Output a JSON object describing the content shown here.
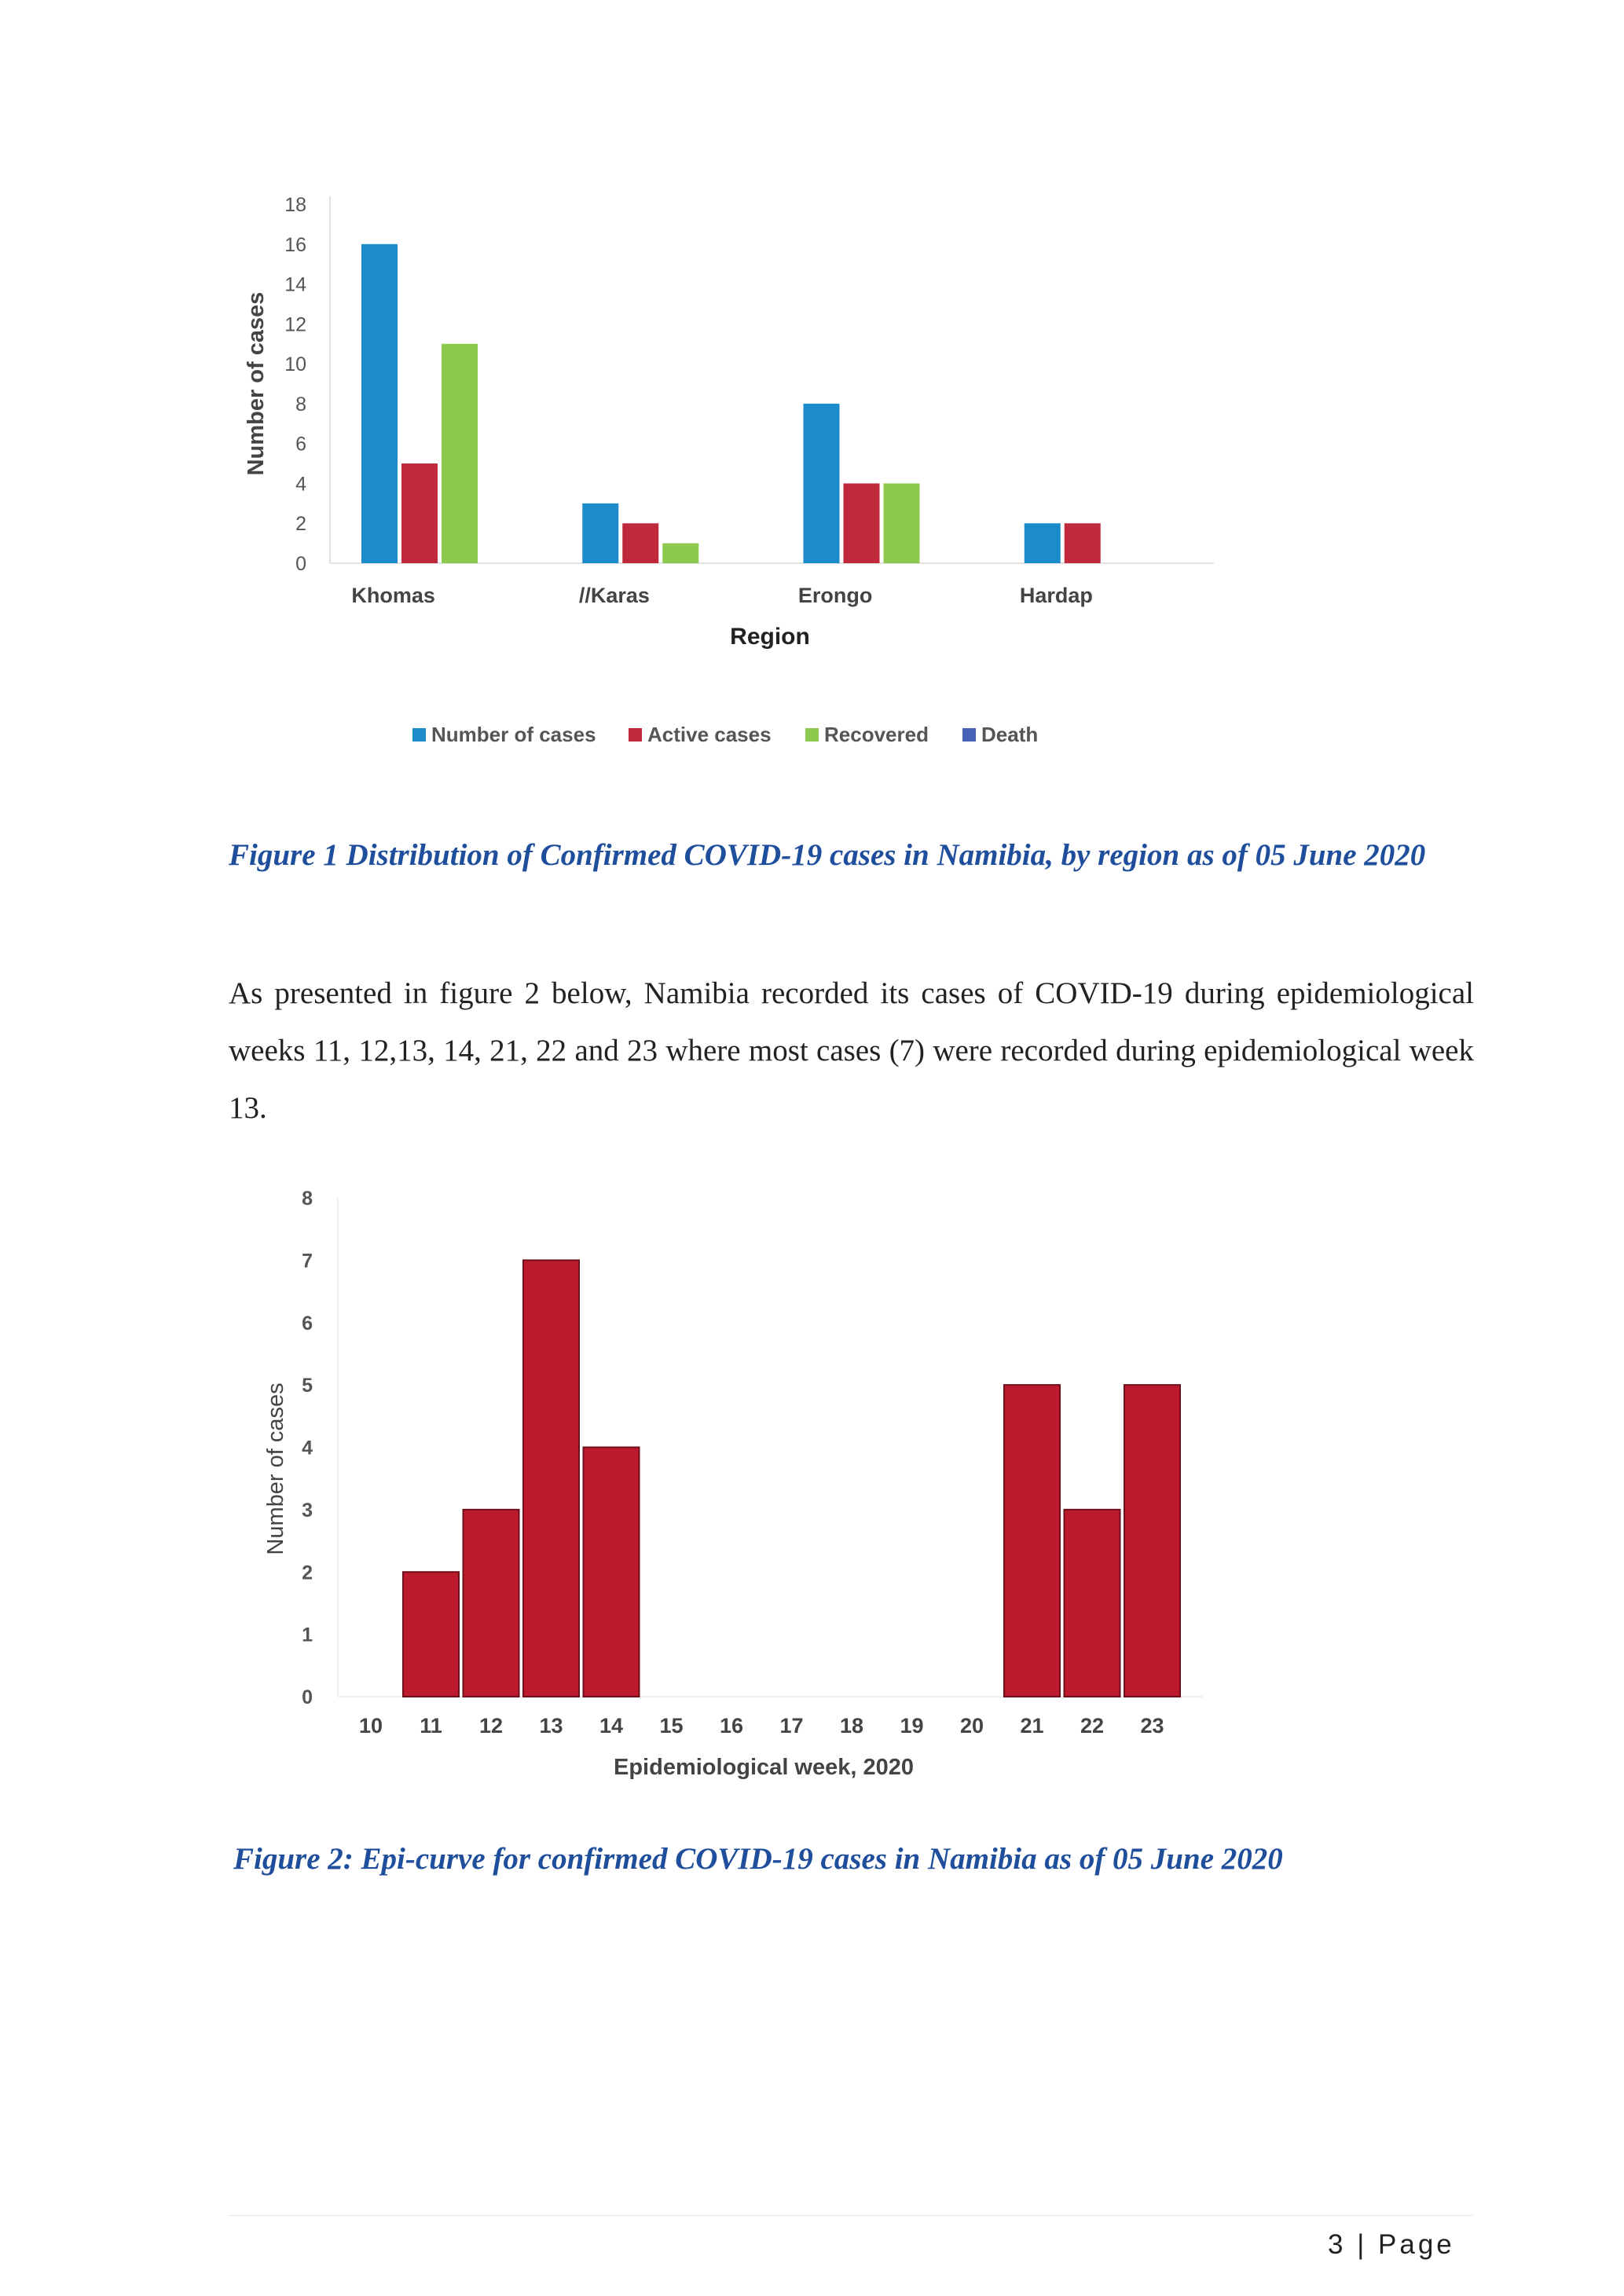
{
  "figure1": {
    "caption": "Figure 1 Distribution of Confirmed COVID-19 cases in Namibia, by region as of 05 June 2020"
  },
  "paragraph": "As presented in figure 2 below, Namibia recorded its cases of COVID-19 during epidemiological weeks 11, 12,13, 14, 21, 22 and 23 where most cases (7) were recorded during epidemiological week 13.",
  "figure2": {
    "caption": "Figure 2: Epi-curve for confirmed COVID-19 cases in Namibia as of 05 June 2020"
  },
  "footer": {
    "page_label": "3 | Page"
  },
  "colors": {
    "number_of_cases": "#1b8bc9",
    "active_cases": "#c0283c",
    "recovered": "#8cc94c",
    "death": "#4763b8",
    "epi_bar": "#bd1a2e",
    "caption": "#1f4e9c"
  },
  "chart_data": [
    {
      "type": "bar",
      "categories": [
        "Khomas",
        "//Karas",
        "Erongo",
        "Hardap"
      ],
      "series": [
        {
          "name": "Number of cases",
          "values": [
            16,
            3,
            8,
            2
          ]
        },
        {
          "name": "Active cases",
          "values": [
            5,
            2,
            4,
            2
          ]
        },
        {
          "name": "Recovered",
          "values": [
            11,
            1,
            4,
            0
          ]
        },
        {
          "name": "Death",
          "values": [
            0,
            0,
            0,
            0
          ]
        }
      ],
      "title": "",
      "xlabel": "Region",
      "ylabel": "Number of cases",
      "ylim": [
        0,
        18
      ],
      "yticks": [
        "0",
        "2",
        "4",
        "6",
        "8",
        "10",
        "12",
        "14",
        "16",
        "18"
      ],
      "grid": false,
      "legend": "bottom"
    },
    {
      "type": "bar",
      "categories": [
        "10",
        "11",
        "12",
        "13",
        "14",
        "15",
        "16",
        "17",
        "18",
        "19",
        "20",
        "21",
        "22",
        "23"
      ],
      "values": [
        0,
        2,
        3,
        7,
        4,
        0,
        0,
        0,
        0,
        0,
        0,
        5,
        3,
        5
      ],
      "title": "",
      "xlabel": "Epidemiological week, 2020",
      "ylabel": "Number of cases",
      "ylim": [
        0,
        8
      ],
      "yticks": [
        "0",
        "1",
        "2",
        "3",
        "4",
        "5",
        "6",
        "7",
        "8"
      ],
      "grid": false,
      "legend": "none"
    }
  ]
}
